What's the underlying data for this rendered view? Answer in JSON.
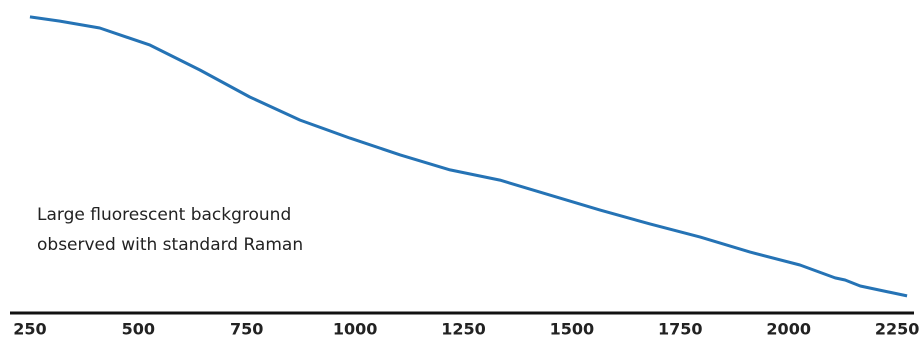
{
  "chart_data": {
    "type": "line",
    "annotation": [
      "Large fluorescent background",
      "observed with standard Raman"
    ],
    "x": [
      250,
      319,
      411,
      527,
      642,
      757,
      873,
      988,
      1104,
      1219,
      1334,
      1426,
      1565,
      1680,
      1796,
      1911,
      2026,
      2107,
      2130,
      2165,
      2273
    ],
    "series": [
      {
        "color": "#2573b5",
        "values": [
          98.7,
          97.3,
          95,
          89.3,
          81,
          72,
          64.3,
          58.3,
          52.7,
          47.7,
          44.3,
          40.3,
          34.3,
          29.7,
          25.3,
          20.3,
          16,
          11.7,
          11,
          9,
          5.7
        ]
      }
    ],
    "xlim": [
      204,
      2289
    ],
    "xticks": [
      250,
      500,
      750,
      1000,
      1250,
      1500,
      1750,
      2000,
      2250
    ],
    "ylim": [
      0,
      100
    ],
    "grid": false
  }
}
